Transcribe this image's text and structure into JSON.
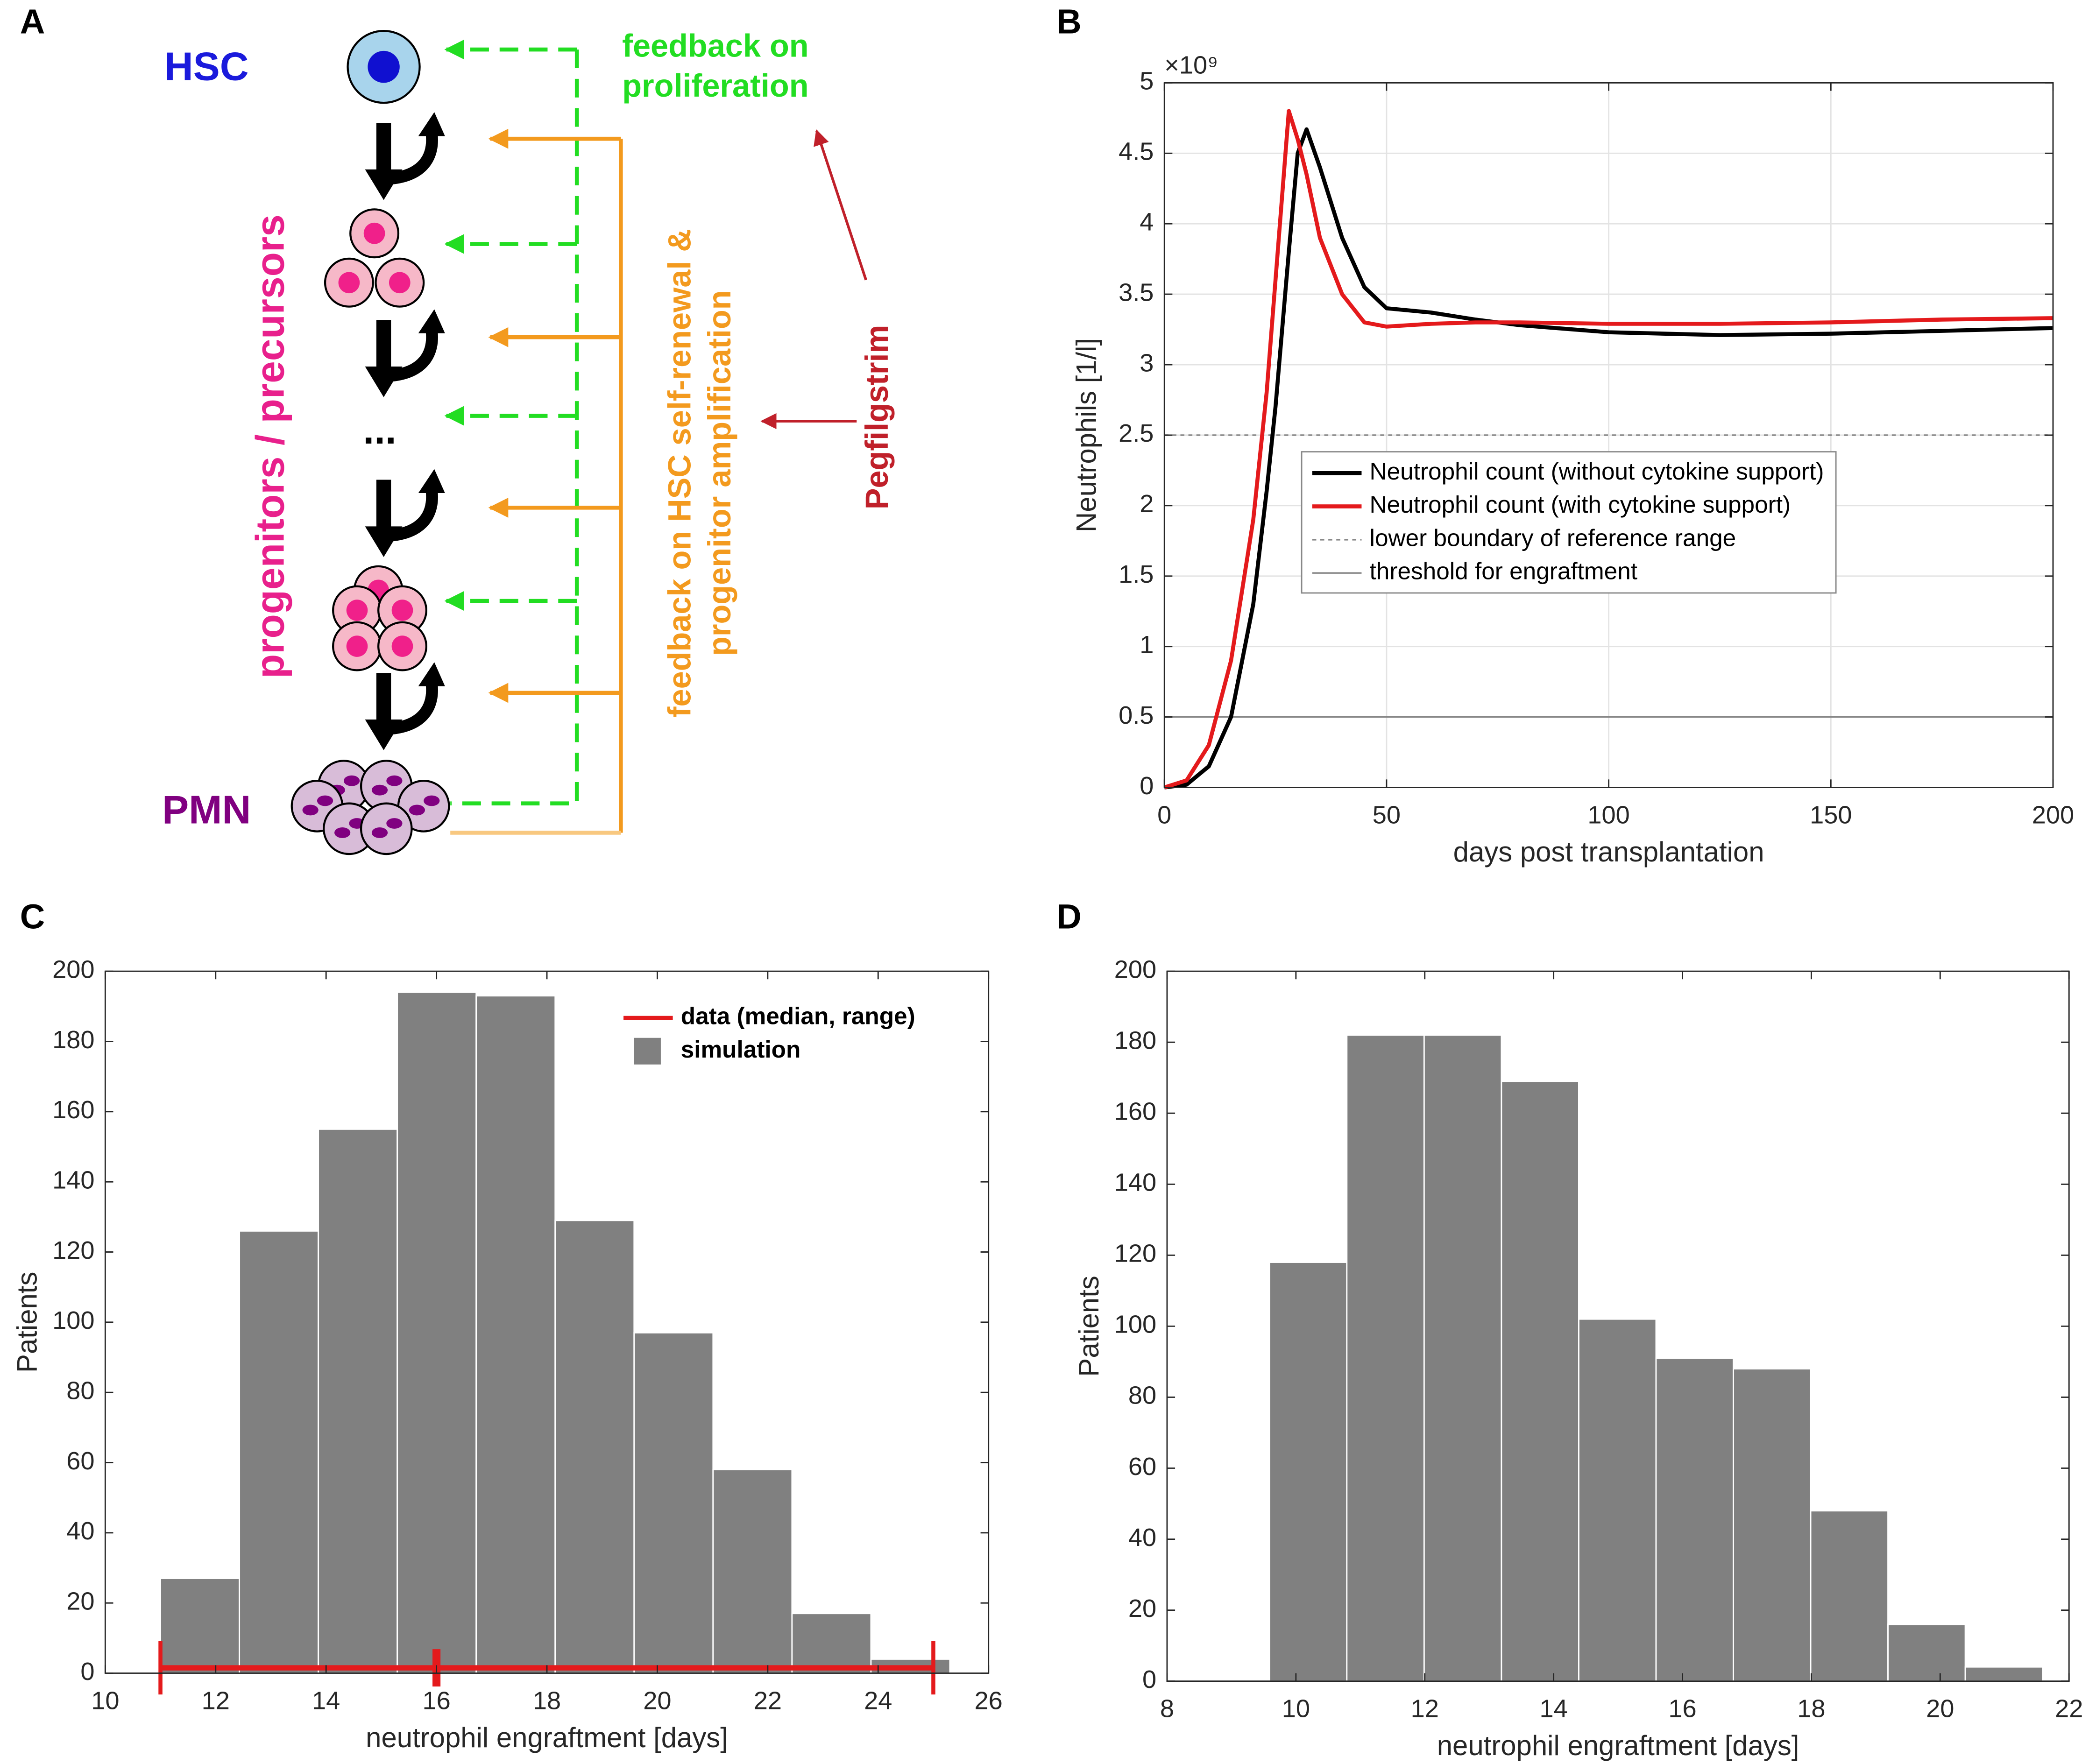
{
  "panels": [
    "A",
    "B",
    "C",
    "D"
  ],
  "diagram": {
    "hsc": "HSC",
    "pmn": "PMN",
    "progenitors": "progenitors / precursors",
    "ellipsis": "...",
    "feedback_proliferation": [
      "feedback on",
      "proliferation"
    ],
    "feedback_renewal": [
      "feedback on HSC self-renewal &",
      "progenitor amplification"
    ],
    "drug": "Pegfilgstrim"
  },
  "chart_data": [
    {
      "type": "line",
      "xlabel": "days post transplantation",
      "ylabel": "Neutrophils [1/l]",
      "y_scale": "×10⁹",
      "x": [
        0,
        5,
        10,
        15,
        20,
        23,
        25,
        28,
        30,
        32,
        35,
        40,
        45,
        50,
        60,
        70,
        80,
        100,
        125,
        150,
        175,
        200
      ],
      "series": [
        {
          "name": "Neutrophil count (without cytokine support)",
          "color": "#000000",
          "values": [
            0,
            0.02,
            0.15,
            0.5,
            1.3,
            2.1,
            2.7,
            3.8,
            4.5,
            4.67,
            4.4,
            3.9,
            3.55,
            3.4,
            3.37,
            3.32,
            3.28,
            3.23,
            3.21,
            3.22,
            3.24,
            3.26
          ]
        },
        {
          "name": "Neutrophil count (with cytokine support)",
          "color": "#e41a1c",
          "values": [
            0,
            0.05,
            0.3,
            0.9,
            1.9,
            2.8,
            3.6,
            4.8,
            4.6,
            4.35,
            3.9,
            3.5,
            3.3,
            3.27,
            3.29,
            3.3,
            3.3,
            3.29,
            3.29,
            3.3,
            3.32,
            3.33
          ]
        }
      ],
      "reference_lines": [
        {
          "name": "lower boundary of reference range",
          "value": 2.5,
          "style": "dotted",
          "color": "#888888"
        },
        {
          "name": "threshold for engraftment",
          "value": 0.5,
          "style": "solid",
          "color": "#888888"
        }
      ],
      "xlim": [
        0,
        200
      ],
      "xticks": [
        0,
        50,
        100,
        150,
        200
      ],
      "ylim": [
        0,
        5
      ],
      "yticks": [
        0,
        0.5,
        1,
        1.5,
        2,
        2.5,
        3,
        3.5,
        4,
        4.5,
        5
      ],
      "grid": true,
      "legend": "center"
    },
    {
      "type": "histogram",
      "xlabel": "neutrophil engraftment [days]",
      "ylabel": "Patients",
      "name": "simulation",
      "color": "#808080",
      "bins": [
        11,
        12.43,
        13.86,
        15.29,
        16.72,
        18.15,
        19.58,
        21.01,
        22.44,
        23.87,
        25.3
      ],
      "values": [
        27,
        126,
        155,
        194,
        193,
        129,
        97,
        58,
        17,
        4
      ],
      "data_range": {
        "name": "data (median, range)",
        "color": "#e41a1c",
        "min": 11,
        "median": 16,
        "max": 25
      },
      "xlim": [
        10,
        26
      ],
      "xticks": [
        10,
        12,
        14,
        16,
        18,
        20,
        22,
        24,
        26
      ],
      "ylim": [
        0,
        200
      ],
      "yticks": [
        0,
        20,
        40,
        60,
        80,
        100,
        120,
        140,
        160,
        180,
        200
      ],
      "grid": false,
      "legend": "upper right"
    },
    {
      "type": "histogram",
      "xlabel": "neutrophil engraftment [days]",
      "ylabel": "Patients",
      "color": "#808080",
      "bins": [
        9.59,
        10.79,
        11.99,
        13.19,
        14.39,
        15.59,
        16.79,
        17.99,
        19.19,
        20.39,
        21.59
      ],
      "values": [
        118,
        182,
        182,
        169,
        102,
        91,
        88,
        48,
        16,
        4
      ],
      "xlim": [
        8,
        22
      ],
      "xticks": [
        8,
        10,
        12,
        14,
        16,
        18,
        20,
        22
      ],
      "ylim": [
        0,
        200
      ],
      "yticks": [
        0,
        20,
        40,
        60,
        80,
        100,
        120,
        140,
        160,
        180,
        200
      ],
      "grid": false
    }
  ]
}
